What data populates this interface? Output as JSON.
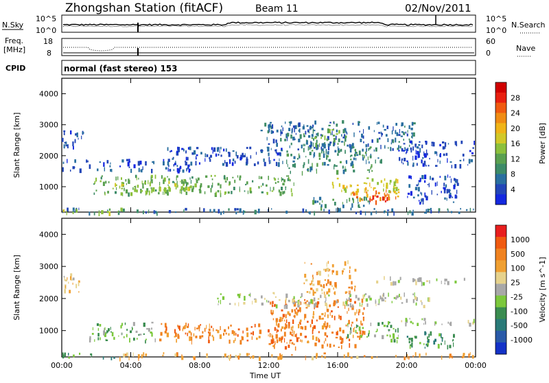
{
  "header": {
    "station": "Zhongshan Station (fitACF)",
    "beam": "Beam 11",
    "date": "02/Nov/2011"
  },
  "top_panels": {
    "nsky": {
      "left_label": "N.Sky",
      "left_ticks": [
        "10^5",
        "10^0"
      ],
      "right_label": "N.Search",
      "right_ticks": [
        "10^5",
        "10^0"
      ]
    },
    "freq": {
      "left_label_lines": [
        "Freq.",
        "[MHz]"
      ],
      "left_ticks": [
        "18",
        "8"
      ],
      "right_label": "Nave",
      "right_ticks": [
        "60",
        "0"
      ]
    },
    "cpid": {
      "label": "CPID",
      "text": "normal (fast stereo) 153"
    }
  },
  "chart_data": [
    {
      "type": "heatmap",
      "name": "power",
      "ylabel": "Slant Range [km]",
      "xlabel": "",
      "x_ticks": [
        "00:00",
        "04:00",
        "08:00",
        "12:00",
        "16:00",
        "20:00",
        "00:00"
      ],
      "xlim_hours": [
        0,
        24
      ],
      "ylim_km": [
        180,
        4500
      ],
      "y_ticks": [
        1000,
        2000,
        3000,
        4000
      ],
      "colorbar": {
        "label": "Power [dB]",
        "ticks": [
          "28",
          "24",
          "20",
          "16",
          "12",
          "8",
          "4"
        ],
        "colors": [
          "#1428e0",
          "#2346b8",
          "#2a6fa0",
          "#3d8b68",
          "#5aa050",
          "#8cc03c",
          "#d2c828",
          "#f0b418",
          "#f08c14",
          "#f05a10",
          "#e82010",
          "#d00000"
        ]
      },
      "blobs": [
        {
          "t0": 0.0,
          "t1": 23.9,
          "r0": 180,
          "r1": 330,
          "level": 2
        },
        {
          "t0": 0.0,
          "t1": 3.5,
          "r0": 180,
          "r1": 330,
          "level": 5
        },
        {
          "t0": 1.8,
          "t1": 13.5,
          "r0": 800,
          "r1": 1400,
          "level": 4
        },
        {
          "t0": 3.0,
          "t1": 8.0,
          "r0": 900,
          "r1": 1250,
          "level": 5
        },
        {
          "t0": 0.0,
          "t1": 1.2,
          "r0": 2300,
          "r1": 2900,
          "level": 1
        },
        {
          "t0": 0.0,
          "t1": 7.5,
          "r0": 1550,
          "r1": 1900,
          "level": 1
        },
        {
          "t0": 6.0,
          "t1": 13.0,
          "r0": 1750,
          "r1": 2300,
          "level": 1
        },
        {
          "t0": 11.5,
          "t1": 20.5,
          "r0": 2200,
          "r1": 3150,
          "level": 2
        },
        {
          "t0": 14.0,
          "t1": 16.5,
          "r0": 2400,
          "r1": 2900,
          "level": 4
        },
        {
          "t0": 13.0,
          "t1": 18.5,
          "r0": 1500,
          "r1": 2300,
          "level": 3
        },
        {
          "t0": 15.5,
          "t1": 19.5,
          "r0": 800,
          "r1": 1300,
          "level": 6
        },
        {
          "t0": 16.8,
          "t1": 19.5,
          "r0": 600,
          "r1": 1000,
          "level": 8
        },
        {
          "t0": 17.8,
          "t1": 19.2,
          "r0": 500,
          "r1": 750,
          "level": 10
        },
        {
          "t0": 14.5,
          "t1": 18.0,
          "r0": 350,
          "r1": 700,
          "level": 3
        },
        {
          "t0": 19.5,
          "t1": 23.9,
          "r0": 1700,
          "r1": 2500,
          "level": 1
        },
        {
          "t0": 20.0,
          "t1": 23.0,
          "r0": 500,
          "r1": 1400,
          "level": 1
        }
      ]
    },
    {
      "type": "heatmap",
      "name": "velocity",
      "ylabel": "Slant Range [km]",
      "xlabel": "Time UT",
      "x_ticks": [
        "00:00",
        "04:00",
        "08:00",
        "12:00",
        "16:00",
        "20:00",
        "00:00"
      ],
      "xlim_hours": [
        0,
        24
      ],
      "ylim_km": [
        180,
        4500
      ],
      "y_ticks": [
        1000,
        2000,
        3000,
        4000
      ],
      "colorbar": {
        "label": "Velocity [m s^-1]",
        "ticks": [
          "1000",
          "500",
          "100",
          "25",
          "-25",
          "-100",
          "-500",
          "-1000"
        ],
        "colors": [
          "#1432c8",
          "#2a5aa8",
          "#2a7a78",
          "#3a8c50",
          "#7cc83c",
          "#a8a8a8",
          "#e6d28c",
          "#f0a032",
          "#f08220",
          "#f05a10",
          "#e81e1e"
        ]
      },
      "blobs": [
        {
          "t0": 0.0,
          "t1": 3.2,
          "r0": 180,
          "r1": 330,
          "level": 3
        },
        {
          "t0": 3.2,
          "t1": 23.9,
          "r0": 180,
          "r1": 330,
          "level": 7
        },
        {
          "t0": 1.5,
          "t1": 5.5,
          "r0": 700,
          "r1": 1300,
          "level": 4
        },
        {
          "t0": 5.5,
          "t1": 14.0,
          "r0": 700,
          "r1": 1250,
          "level": 8
        },
        {
          "t0": 12.0,
          "t1": 17.5,
          "r0": 500,
          "r1": 2000,
          "level": 8
        },
        {
          "t0": 14.0,
          "t1": 17.0,
          "r0": 2200,
          "r1": 3200,
          "level": 7
        },
        {
          "t0": 16.5,
          "t1": 19.5,
          "r0": 700,
          "r1": 1300,
          "level": 4
        },
        {
          "t0": 0.0,
          "t1": 1.0,
          "r0": 2100,
          "r1": 2800,
          "level": 6
        },
        {
          "t0": 9.0,
          "t1": 21.5,
          "r0": 1800,
          "r1": 2200,
          "level": 5
        },
        {
          "t0": 18.0,
          "t1": 23.5,
          "r0": 2500,
          "r1": 2700,
          "level": 5
        },
        {
          "t0": 19.5,
          "t1": 23.9,
          "r0": 1200,
          "r1": 1400,
          "level": 5
        },
        {
          "t0": 20.0,
          "t1": 23.0,
          "r0": 500,
          "r1": 1000,
          "level": 3
        }
      ]
    }
  ]
}
